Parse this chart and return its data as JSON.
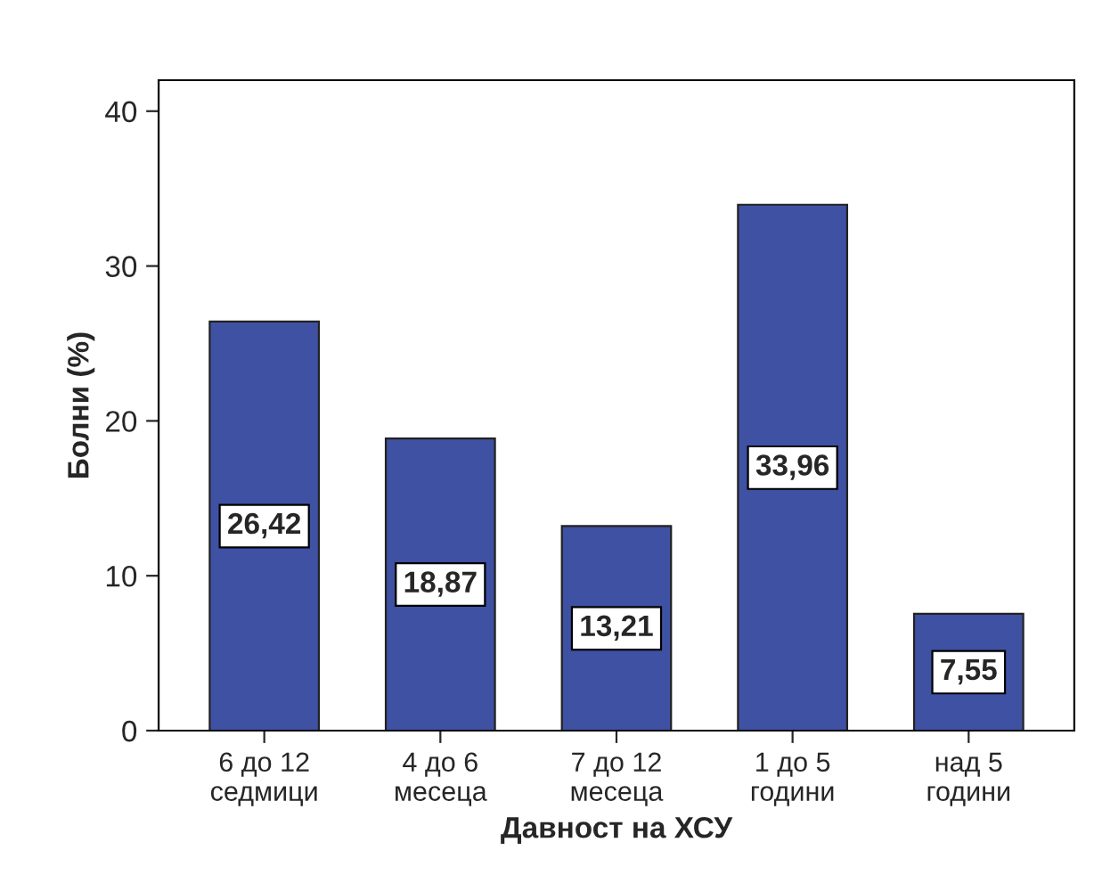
{
  "chart_data": {
    "type": "bar",
    "xlabel": "Давност на ХСУ",
    "ylabel": "Болни (%)",
    "categories": [
      "6 до 12\nседмици",
      "4 до 6\nмесеца",
      "7 до 12\nмесеца",
      "1 до 5\nгодини",
      "над 5\nгодини"
    ],
    "values": [
      26.42,
      18.87,
      13.21,
      33.96,
      7.55
    ],
    "value_labels": [
      "26,42",
      "18,87",
      "13,21",
      "33,96",
      "7,55"
    ],
    "color": "#3f51a3",
    "ylim": [
      0,
      42
    ],
    "yticks": [
      0,
      10,
      20,
      30,
      40
    ],
    "grid": false
  }
}
